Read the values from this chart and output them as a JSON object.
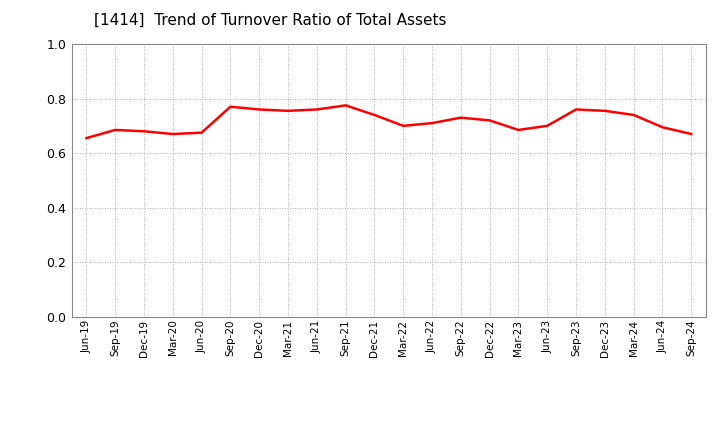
{
  "title": "[1414]  Trend of Turnover Ratio of Total Assets",
  "line_color": "#ff0000",
  "line_width": 1.8,
  "background_color": "#ffffff",
  "grid_color": "#999999",
  "ylim": [
    0.0,
    1.0
  ],
  "yticks": [
    0.0,
    0.2,
    0.4,
    0.6,
    0.8,
    1.0
  ],
  "x_labels": [
    "Jun-19",
    "Sep-19",
    "Dec-19",
    "Mar-20",
    "Jun-20",
    "Sep-20",
    "Dec-20",
    "Mar-21",
    "Jun-21",
    "Sep-21",
    "Dec-21",
    "Mar-22",
    "Jun-22",
    "Sep-22",
    "Dec-22",
    "Mar-23",
    "Jun-23",
    "Sep-23",
    "Dec-23",
    "Mar-24",
    "Jun-24",
    "Sep-24"
  ],
  "values": [
    0.655,
    0.685,
    0.68,
    0.67,
    0.675,
    0.77,
    0.76,
    0.755,
    0.76,
    0.775,
    0.74,
    0.7,
    0.71,
    0.73,
    0.72,
    0.685,
    0.7,
    0.76,
    0.755,
    0.74,
    0.695,
    0.67
  ]
}
